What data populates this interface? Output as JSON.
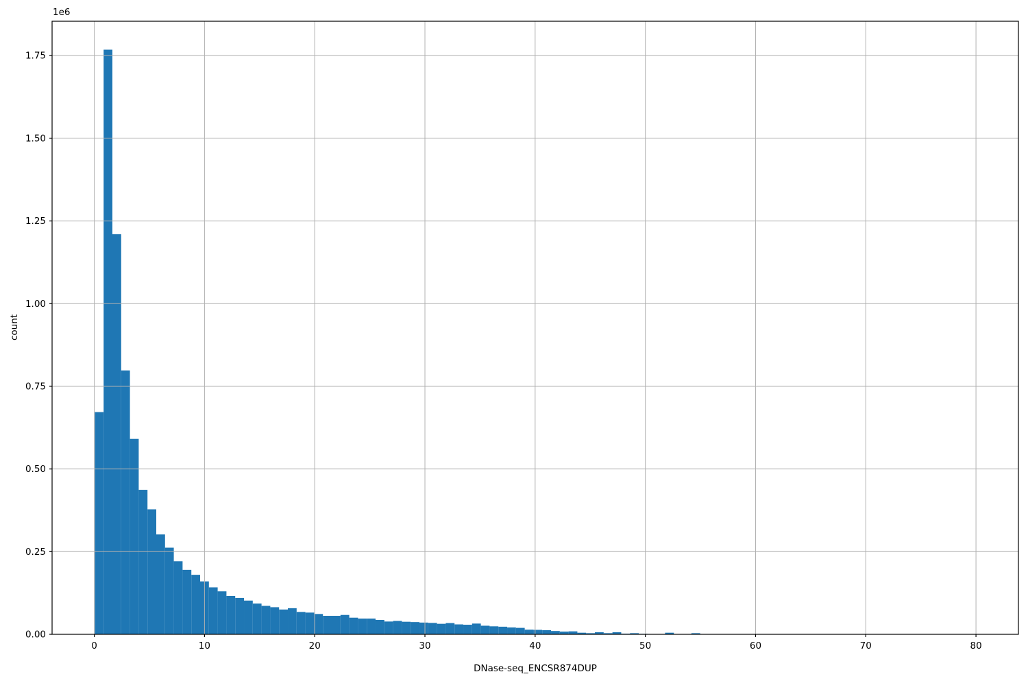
{
  "chart_data": {
    "type": "bar",
    "subtype": "histogram",
    "title": "",
    "xlabel": "DNase-seq_ENCSR874DUP",
    "ylabel": "count",
    "y_offset_label": "1e6",
    "bar_color": "#1f77b4",
    "grid": true,
    "grid_color": "#b0b0b0",
    "spine_color": "#000000",
    "legend": "none",
    "xlim": [
      -3.83,
      83.85
    ],
    "ylim": [
      0,
      1854000
    ],
    "xtick_values": [
      0,
      10,
      20,
      30,
      40,
      50,
      60,
      70,
      80
    ],
    "xtick_labels": [
      "0",
      "10",
      "20",
      "30",
      "40",
      "50",
      "60",
      "70",
      "80"
    ],
    "ytick_values": [
      0,
      250000,
      500000,
      750000,
      1000000,
      1250000,
      1500000,
      1750000
    ],
    "ytick_labels": [
      "0.00",
      "0.25",
      "0.50",
      "0.75",
      "1.00",
      "1.25",
      "1.50",
      "1.75"
    ],
    "bin_start": 0.05,
    "bin_width": 0.796,
    "counts": [
      672000,
      1768000,
      1210000,
      798000,
      591000,
      437000,
      378000,
      302000,
      262000,
      221000,
      195000,
      180000,
      160000,
      142000,
      130000,
      116000,
      110000,
      102000,
      93000,
      86000,
      82000,
      75000,
      79000,
      67700,
      65700,
      61500,
      55900,
      55900,
      58600,
      50300,
      47600,
      47600,
      43500,
      38700,
      40500,
      38000,
      37000,
      35500,
      34500,
      31800,
      34000,
      30000,
      29000,
      32500,
      26000,
      24200,
      23000,
      20700,
      19500,
      14000,
      13500,
      12400,
      10000,
      8300,
      9000,
      4800,
      3400,
      6200,
      3400,
      6200,
      2000,
      3400,
      1400,
      0,
      0,
      4800,
      0,
      0,
      3400,
      0
    ]
  }
}
